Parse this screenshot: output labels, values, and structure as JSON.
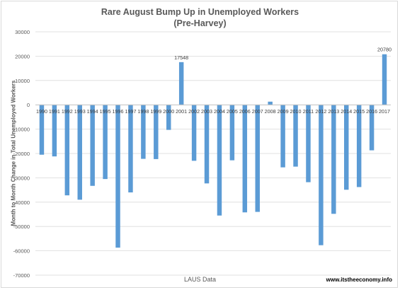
{
  "chart_data": {
    "type": "bar",
    "title": "Rare August Bump Up in Unemployed Workers",
    "subtitle": "(Pre-Harvey)",
    "xlabel": "LAUS Data",
    "ylabel": "Month to Month Change in Total Unemployed Workers",
    "ylim": [
      -70000,
      30000
    ],
    "yticks": [
      "30000",
      "20000",
      "10000",
      "0",
      "-10000",
      "-20000",
      "-30000",
      "-40000",
      "-50000",
      "-60000",
      "-70000"
    ],
    "categories": [
      "1990",
      "1991",
      "1992",
      "1993",
      "1994",
      "1995",
      "1996",
      "1997",
      "1998",
      "1999",
      "2000",
      "2001",
      "2002",
      "2003",
      "2004",
      "2005",
      "2006",
      "2007",
      "2008",
      "2009",
      "2010",
      "2011",
      "2012",
      "2013",
      "2014",
      "2015",
      "2016",
      "2017"
    ],
    "values": [
      -20500,
      -21200,
      -37200,
      -39000,
      -33300,
      -30500,
      -58700,
      -36000,
      -22200,
      -22300,
      -10300,
      17548,
      -23000,
      -32300,
      -45500,
      -22800,
      -44200,
      -44000,
      1300,
      -25700,
      -25400,
      -31800,
      -57700,
      -44800,
      -34900,
      -33800,
      -18700,
      20780
    ],
    "data_labels": {
      "2001": "17548",
      "2017": "20780"
    },
    "bar_color": "#5b9bd5",
    "grid": true,
    "legend": "none"
  },
  "footer": {
    "source": "www.itstheeconomy.info"
  }
}
